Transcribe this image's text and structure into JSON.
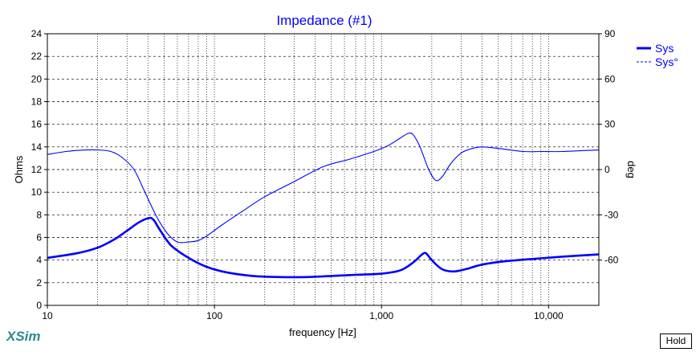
{
  "app": {
    "brand": "XSim",
    "hold_label": "Hold"
  },
  "chart_data": {
    "type": "line",
    "title": "Impedance (#1)",
    "xlabel": "frequency [Hz]",
    "ylabel": "Ohms",
    "y2label": "deg",
    "xscale": "log",
    "xlim": [
      10,
      20000
    ],
    "ylim": [
      0,
      24
    ],
    "y2lim": [
      -90,
      90
    ],
    "xticks": [
      "10",
      "100",
      "1,000",
      "10,000"
    ],
    "yticks": [
      "0",
      "2",
      "4",
      "6",
      "8",
      "10",
      "12",
      "14",
      "16",
      "18",
      "20",
      "22",
      "24"
    ],
    "y2ticks": [
      "-60",
      "-30",
      "0",
      "30",
      "60",
      "90"
    ],
    "grid": true,
    "legend": {
      "placement": "right",
      "entries": [
        "Sys",
        "Sys°"
      ]
    },
    "colors": {
      "series": "#0000ff",
      "title": "#0000ff",
      "grid": "#000000",
      "frame": "#000000"
    },
    "series": [
      {
        "name": "Sys",
        "axis": "left",
        "style": "solid-thick",
        "x": [
          10,
          15,
          20,
          25,
          30,
          35,
          40,
          43,
          47,
          55,
          70,
          90,
          120,
          170,
          250,
          350,
          500,
          700,
          1000,
          1300,
          1550,
          1750,
          1850,
          2000,
          2300,
          2700,
          3200,
          4000,
          5500,
          8000,
          12000,
          20000
        ],
        "values": [
          4.2,
          4.6,
          5.1,
          5.8,
          6.6,
          7.3,
          7.7,
          7.6,
          6.7,
          5.3,
          4.2,
          3.4,
          2.9,
          2.6,
          2.5,
          2.5,
          2.6,
          2.7,
          2.8,
          3.1,
          3.8,
          4.5,
          4.6,
          4.0,
          3.2,
          3.0,
          3.2,
          3.6,
          3.9,
          4.1,
          4.3,
          4.5
        ]
      },
      {
        "name": "Sys°",
        "axis": "right",
        "style": "solid-thin",
        "x": [
          10,
          13,
          17,
          20,
          24,
          28,
          33,
          38,
          45,
          52,
          60,
          70,
          80,
          90,
          110,
          150,
          200,
          300,
          450,
          650,
          900,
          1100,
          1300,
          1450,
          1550,
          1700,
          1900,
          2100,
          2300,
          2600,
          3000,
          3500,
          4000,
          5000,
          7000,
          9000,
          12000,
          20000
        ],
        "values": [
          10,
          12,
          13,
          13,
          12,
          8,
          0,
          -14,
          -31,
          -42,
          -48,
          -48,
          -47,
          -44,
          -37,
          -27,
          -18,
          -8,
          2,
          7,
          12,
          16,
          21,
          24,
          23,
          15,
          1,
          -7,
          -5,
          4,
          11,
          14,
          15,
          14,
          12,
          12,
          12,
          13
        ]
      }
    ]
  }
}
